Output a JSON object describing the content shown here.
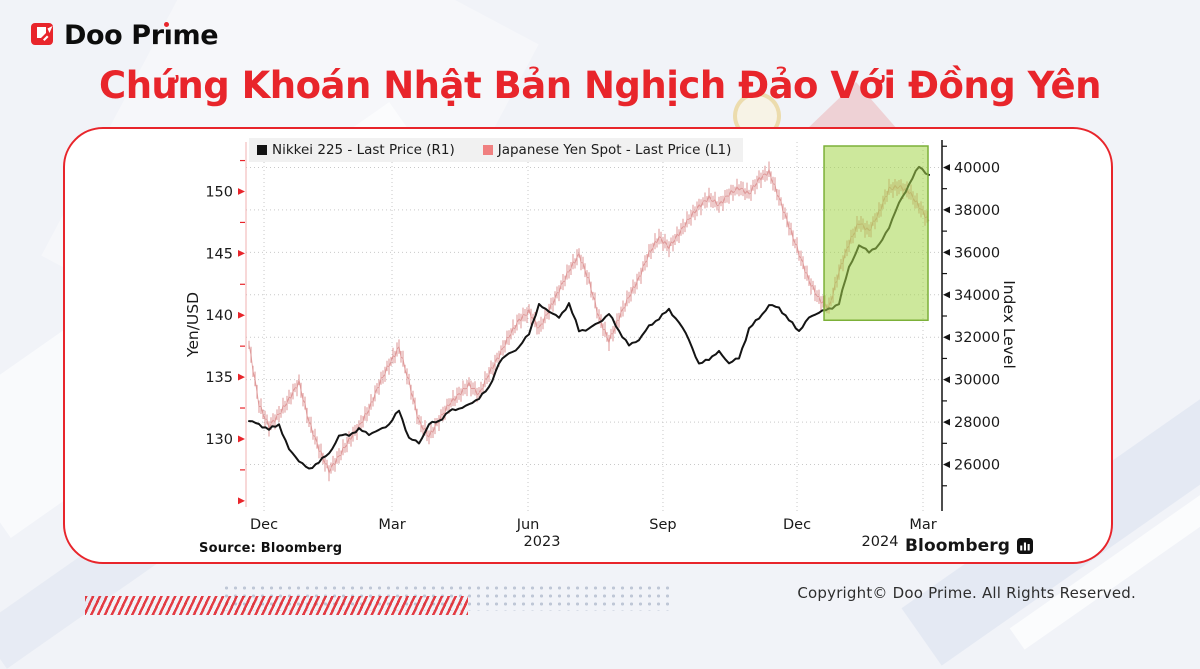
{
  "brand": {
    "logo_text_a": "Doo Pr",
    "logo_text_i": "ı",
    "logo_text_b": "me"
  },
  "title": "Chứng Khoán Nhật Bản Nghịch Đảo Với Đồng Yên",
  "chart": {
    "source_label": "Source: Bloomberg",
    "bloomberg_text": "Bloomberg"
  },
  "colors": {
    "accent_red": "#e8252b",
    "nikkei_black": "#141414",
    "yen_salmon": "#d98989",
    "yen_legend_swatch": "#f08080",
    "highlight_fill": "rgba(164,213,74,0.55)",
    "highlight_border": "#7cb038",
    "grid_gray": "#c9c9c9",
    "legend_bg": "#f1f1f1"
  },
  "chart_data": {
    "type": "line",
    "title": "",
    "x_description": "weekly samples, late Nov 2022 - early Mar 2024",
    "x_tick_labels": [
      "Dec",
      "Mar",
      "Jun",
      "Sep",
      "Dec",
      "Mar"
    ],
    "x_tick_t": [
      0.0259,
      0.2098,
      0.4052,
      0.5991,
      0.7917,
      0.9727
    ],
    "year_labels": [
      {
        "label": "2023",
        "t": 0.4253
      },
      {
        "label": "2024",
        "t": 0.9109
      }
    ],
    "legend": [
      {
        "label": "Nikkei 225 - Last Price (R1)",
        "color": "#141414"
      },
      {
        "label": "Japanese Yen Spot - Last Price (L1)",
        "color": "#f08080"
      }
    ],
    "left_axis": {
      "title": "Yen/USD",
      "range": [
        124.5,
        154
      ],
      "major_ticks": [
        130,
        135,
        140,
        145,
        150
      ],
      "arrow_ticks": [
        125,
        130,
        135,
        140,
        145,
        150
      ],
      "minor_ticks": [
        127.5,
        132.5,
        137.5,
        142.5,
        147.5,
        152.5
      ],
      "color": "#e8252b"
    },
    "right_axis": {
      "title": "Index Level",
      "range": [
        24000,
        41200
      ],
      "major_ticks": [
        26000,
        28000,
        30000,
        32000,
        34000,
        36000,
        38000,
        40000
      ],
      "minor_step": 1000,
      "minor_min": 25000,
      "minor_max": 41000,
      "color": "#141414"
    },
    "grid": {
      "horizontal_from": "right_axis",
      "style": "dotted"
    },
    "series": [
      {
        "name": "Japanese Yen Spot - Last Price (L1)",
        "axis": "left",
        "style": "hilo-bars",
        "color": "#d98989",
        "values": [
          137.6,
          132.8,
          131.0,
          132.0,
          133.2,
          134.6,
          131.4,
          129.2,
          127.4,
          128.6,
          129.9,
          131.0,
          132.4,
          134.4,
          136.0,
          137.4,
          134.6,
          131.4,
          130.2,
          131.5,
          132.8,
          133.6,
          134.4,
          133.6,
          135.3,
          136.7,
          138.3,
          139.6,
          140.3,
          138.9,
          140.4,
          142.0,
          143.6,
          144.9,
          142.8,
          139.8,
          137.9,
          139.8,
          141.5,
          143.0,
          145.0,
          146.3,
          145.5,
          146.6,
          147.8,
          148.8,
          149.5,
          148.9,
          149.8,
          150.3,
          149.8,
          151.0,
          151.6,
          149.5,
          147.2,
          145.0,
          142.8,
          141.3,
          140.6,
          143.5,
          145.8,
          147.5,
          146.8,
          148.3,
          150.2,
          150.4,
          150.0,
          148.8,
          147.6
        ]
      },
      {
        "name": "Nikkei 225 - Last Price (R1)",
        "axis": "right",
        "style": "line",
        "color": "#141414",
        "values": [
          28050,
          27900,
          27650,
          27900,
          26700,
          26200,
          25750,
          26150,
          26500,
          27350,
          27400,
          27650,
          27450,
          27600,
          27900,
          28550,
          27250,
          27000,
          27900,
          28050,
          28500,
          28650,
          28800,
          29150,
          29600,
          30800,
          31250,
          31500,
          32200,
          33500,
          33250,
          32900,
          33600,
          32300,
          32400,
          32700,
          33100,
          32300,
          31600,
          31900,
          32500,
          32900,
          33300,
          32700,
          31900,
          30700,
          31000,
          31300,
          30800,
          31000,
          32400,
          32900,
          33500,
          33400,
          32800,
          32300,
          32900,
          33200,
          33300,
          33600,
          35300,
          36300,
          36050,
          36300,
          37200,
          38300,
          39200,
          40050,
          39650
        ]
      }
    ],
    "highlight_box": {
      "t_start": 0.8305,
      "t_end": 0.9799,
      "bottom_value_right_axis": 32800,
      "fill": "rgba(164,213,74,0.55)",
      "border": "#7cb038"
    }
  },
  "footer": {
    "copyright": "Copyright© Doo Prime. All Rights Reserved."
  }
}
